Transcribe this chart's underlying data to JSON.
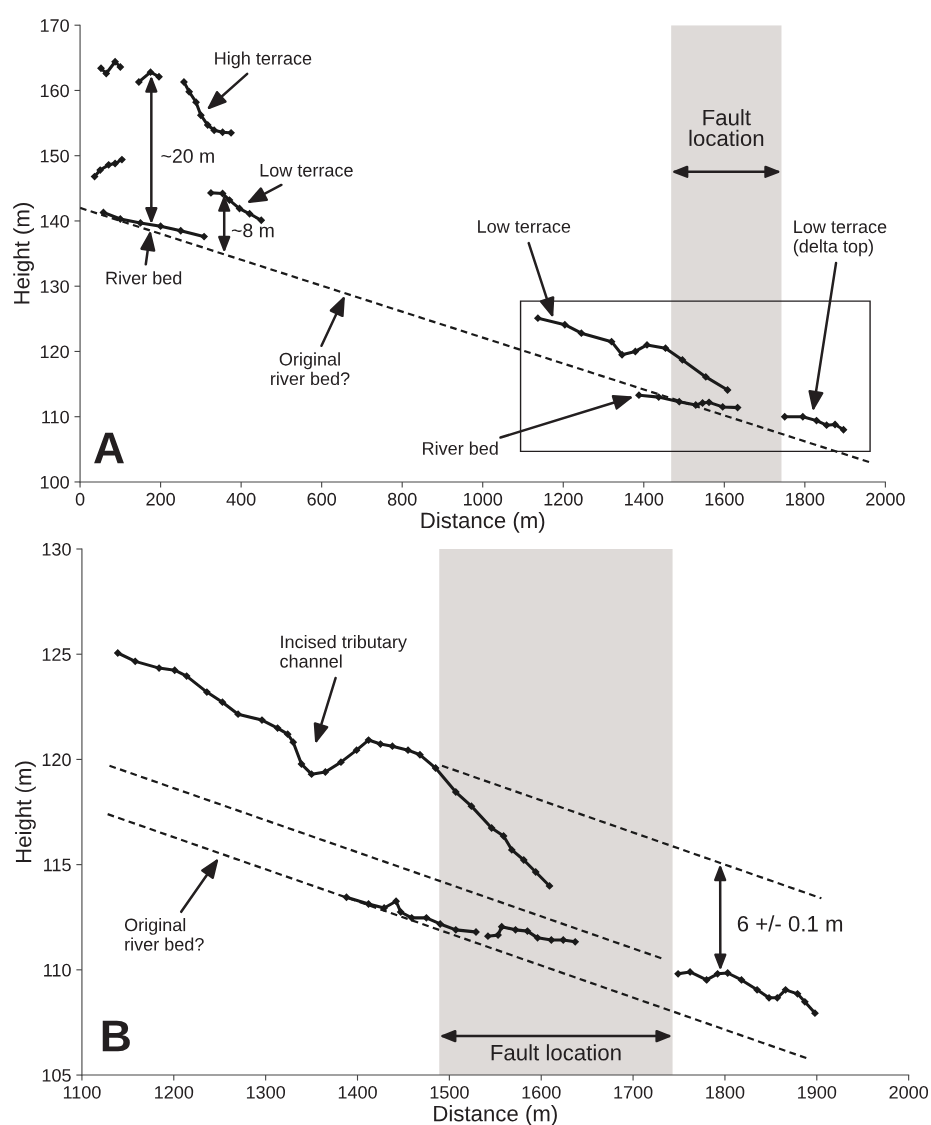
{
  "chart_data": [
    {
      "type": "line",
      "xlabel": "Distance (m)",
      "ylabel": "Height (m)",
      "marker": "diamond",
      "line_style": "solid",
      "xlim": [
        0,
        2000
      ],
      "xticks": [
        0,
        200,
        400,
        600,
        800,
        1000,
        1200,
        1400,
        1600,
        1800,
        2000
      ],
      "ylim": [
        100,
        170
      ],
      "yticks": [
        100,
        110,
        120,
        130,
        140,
        150,
        160,
        170
      ],
      "series": [
        {
          "color": "#1a1a1a",
          "x": [
            52,
            65,
            87,
            100
          ],
          "values": [
            163.4,
            162.6,
            164.4,
            163.6
          ]
        },
        {
          "color": "#1a1a1a",
          "x": [
            146,
            175,
            196
          ],
          "values": [
            161.3,
            162.8,
            162.1
          ]
        },
        {
          "color": "#1a1a1a",
          "x": [
            258,
            271,
            288,
            300,
            317,
            333,
            354,
            375
          ],
          "values": [
            161.3,
            159.8,
            158.2,
            156.2,
            154.7,
            153.9,
            153.6,
            153.5
          ]
        },
        {
          "color": "#1a1a1a",
          "x": [
            36,
            50,
            71,
            87,
            104
          ],
          "values": [
            146.8,
            147.8,
            148.6,
            148.8,
            149.4
          ]
        },
        {
          "color": "#1a1a1a",
          "x": [
            58,
            100,
            150,
            200,
            250,
            308
          ],
          "values": [
            141.3,
            140.3,
            139.7,
            139.2,
            138.5,
            137.6
          ]
        },
        {
          "color": "#1a1a1a",
          "x": [
            325,
            354,
            371,
            396,
            421,
            450
          ],
          "values": [
            144.3,
            144.2,
            143.2,
            141.9,
            141.1,
            140.1
          ]
        },
        {
          "color": "#1a1a1a",
          "x": [
            1137,
            1204,
            1245,
            1320,
            1346,
            1379,
            1408,
            1454,
            1496,
            1554,
            1608
          ],
          "values": [
            125.1,
            124.1,
            122.8,
            121.5,
            119.5,
            120.0,
            121.0,
            120.5,
            118.7,
            116.1,
            114.1
          ]
        },
        {
          "color": "#1a1a1a",
          "x": [
            1388,
            1437,
            1488,
            1529,
            1546,
            1562,
            1596,
            1633
          ],
          "values": [
            113.3,
            113.0,
            112.3,
            111.8,
            112.1,
            112.2,
            111.5,
            111.4
          ]
        },
        {
          "color": "#1a1a1a",
          "x": [
            1750,
            1795,
            1829,
            1854,
            1875,
            1896
          ],
          "values": [
            110.0,
            110.0,
            109.4,
            108.7,
            108.8,
            108.0
          ]
        },
        {
          "type": "line",
          "marker": "none",
          "line_style": "dashed",
          "color": "#1a1a1a",
          "x": [
            0,
            1962
          ],
          "values": [
            142,
            103
          ]
        }
      ],
      "bands": [
        {
          "axis": "x",
          "from": 1468,
          "to": 1742,
          "label": "Fault\nlocation",
          "color": "#dedad8"
        }
      ],
      "annotations": [
        {
          "text": "High terrace",
          "x": 314,
          "y": 157.0
        },
        "~20 m",
        "Low terrace",
        {
          "text": "~8 m",
          "x": 358,
          "y": 135.1
        },
        {
          "text": "River bed",
          "x": 175,
          "y": 138.6
        },
        {
          "text": "Original\nriver bed?",
          "x": 658,
          "y": 128.6
        },
        {
          "text": "Low terrace",
          "x": 1175,
          "y": 125.1
        },
        "Low terrace\n(delta top)",
        "River bed",
        "A"
      ]
    },
    {
      "type": "line",
      "xlabel": "Distance (m)",
      "ylabel": "Height (m)",
      "marker": "diamond",
      "line_style": "solid",
      "xlim": [
        1100,
        2000
      ],
      "xticks": [
        1100,
        1200,
        1300,
        1400,
        1500,
        1600,
        1700,
        1800,
        1900,
        2000
      ],
      "ylim": [
        105,
        130
      ],
      "yticks": [
        105,
        110,
        115,
        120,
        125,
        130
      ],
      "series": [
        {
          "color": "#1a1a1a",
          "x": [
            1139,
            1158,
            1184,
            1201,
            1214,
            1236,
            1253,
            1270,
            1296,
            1313,
            1324,
            1330,
            1339,
            1350,
            1365,
            1382,
            1399,
            1412,
            1425,
            1438,
            1455,
            1468,
            1485,
            1507,
            1524,
            1546,
            1559,
            1568,
            1581,
            1594,
            1609
          ],
          "values": [
            125.06,
            124.66,
            124.34,
            124.24,
            123.96,
            123.2,
            122.72,
            122.15,
            121.87,
            121.49,
            121.2,
            120.82,
            119.78,
            119.3,
            119.4,
            119.87,
            120.44,
            120.92,
            120.73,
            120.63,
            120.44,
            120.22,
            119.59,
            118.45,
            117.78,
            116.74,
            116.36,
            115.7,
            115.22,
            114.65,
            113.99
          ]
        },
        {
          "color": "#1a1a1a",
          "x": [
            1388,
            1412,
            1429,
            1442,
            1447,
            1459,
            1475,
            1490,
            1507,
            1529
          ],
          "values": [
            113.45,
            113.13,
            112.94,
            113.26,
            112.75,
            112.47,
            112.47,
            112.18,
            111.9,
            111.8
          ]
        },
        {
          "color": "#1a1a1a",
          "x": [
            1542,
            1553,
            1557,
            1572,
            1585,
            1596,
            1611,
            1624,
            1637
          ],
          "values": [
            111.6,
            111.65,
            112.05,
            111.9,
            111.84,
            111.52,
            111.42,
            111.42,
            111.33
          ]
        },
        {
          "color": "#1a1a1a",
          "x": [
            1749,
            1762,
            1780,
            1792,
            1803,
            1818,
            1835,
            1848,
            1857,
            1866,
            1879,
            1887,
            1898
          ],
          "values": [
            109.81,
            109.9,
            109.52,
            109.81,
            109.85,
            109.52,
            109.05,
            108.67,
            108.67,
            109.05,
            108.86,
            108.48,
            107.94
          ]
        },
        {
          "type": "line",
          "marker": "none",
          "line_style": "dashed",
          "color": "#1a1a1a",
          "x": [
            1492,
            1905
          ],
          "values": [
            119.7,
            113.4
          ]
        },
        {
          "type": "line",
          "marker": "none",
          "line_style": "dashed",
          "color": "#1a1a1a",
          "x": [
            1130,
            1734
          ],
          "values": [
            119.7,
            110.5
          ]
        },
        {
          "type": "line",
          "marker": "none",
          "line_style": "dashed",
          "color": "#1a1a1a",
          "x": [
            1128,
            1889
          ],
          "values": [
            117.4,
            105.8
          ]
        }
      ],
      "bands": [
        {
          "axis": "x",
          "from": 1489,
          "to": 1743,
          "label": "Fault location",
          "color": "#dedad8"
        }
      ],
      "annotations": [
        "Incised tributary\nchannel",
        {
          "text": "Original\nriver bed?",
          "x": 1249,
          "y": 115.32
        },
        {
          "text": "6 +/- 0.1 m",
          "x": 1795,
          "y": 109.96
        },
        "B"
      ]
    }
  ]
}
